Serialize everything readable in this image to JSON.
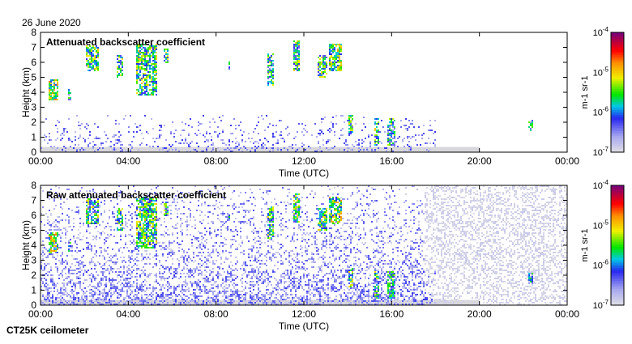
{
  "date_label": "26 June 2020",
  "instrument_label": "CT25K ceilometer",
  "chart_data": [
    {
      "type": "heatmap",
      "title": "Attenuated backscatter coefficient",
      "xlabel": "Time (UTC)",
      "ylabel": "Height (km)",
      "xlim": [
        0,
        24
      ],
      "ylim": [
        0,
        8
      ],
      "xticks": [
        "00:00",
        "04:00",
        "08:00",
        "12:00",
        "16:00",
        "20:00",
        "00:00"
      ],
      "yticks": [
        "0",
        "1",
        "2",
        "3",
        "4",
        "5",
        "6",
        "7",
        "8"
      ],
      "colorbar": {
        "label": "m-1 sr-1",
        "label_base": "m",
        "label_sup1": "-1",
        "label_mid": " sr",
        "label_sup2": "-1",
        "scale": "log",
        "range": [
          1e-07,
          0.0001
        ],
        "ticks": [
          "10",
          "10",
          "10",
          "10"
        ],
        "tick_exponents": [
          "-7",
          "-6",
          "-5",
          "-4"
        ]
      },
      "features": [
        {
          "t": [
            0.3,
            0.8
          ],
          "h": [
            3.5,
            4.9
          ],
          "log_peak": -4.7
        },
        {
          "t": [
            1.2,
            1.4
          ],
          "h": [
            3.5,
            4.3
          ],
          "log_peak": -5.2
        },
        {
          "t": [
            2.0,
            2.6
          ],
          "h": [
            5.5,
            7.2
          ],
          "log_peak": -5.0
        },
        {
          "t": [
            3.4,
            3.7
          ],
          "h": [
            5.0,
            6.5
          ],
          "log_peak": -5.0
        },
        {
          "t": [
            4.3,
            5.3
          ],
          "h": [
            3.8,
            7.3
          ],
          "log_peak": -4.9
        },
        {
          "t": [
            5.6,
            5.8
          ],
          "h": [
            6.0,
            7.0
          ],
          "log_peak": -5.1
        },
        {
          "t": [
            8.5,
            8.6
          ],
          "h": [
            5.3,
            6.1
          ],
          "log_peak": -5.3
        },
        {
          "t": [
            10.3,
            10.6
          ],
          "h": [
            4.5,
            6.7
          ],
          "log_peak": -5.1
        },
        {
          "t": [
            11.5,
            11.8
          ],
          "h": [
            5.5,
            7.5
          ],
          "log_peak": -5.0
        },
        {
          "t": [
            12.6,
            13.0
          ],
          "h": [
            5.0,
            6.5
          ],
          "log_peak": -5.0
        },
        {
          "t": [
            13.1,
            13.7
          ],
          "h": [
            5.5,
            7.3
          ],
          "log_peak": -4.8
        },
        {
          "t": [
            14.0,
            14.2
          ],
          "h": [
            1.2,
            2.5
          ],
          "log_peak": -5.0
        },
        {
          "t": [
            15.2,
            15.4
          ],
          "h": [
            0.5,
            2.3
          ],
          "log_peak": -5.0
        },
        {
          "t": [
            15.8,
            16.1
          ],
          "h": [
            0.5,
            2.3
          ],
          "log_peak": -5.2
        },
        {
          "t": [
            22.2,
            22.4
          ],
          "h": [
            1.5,
            2.2
          ],
          "log_peak": -5.3
        }
      ],
      "boundary_layer": {
        "t": [
          0,
          18
        ],
        "h": [
          0,
          2.5
        ],
        "log_level": -6.5
      }
    },
    {
      "type": "heatmap",
      "title": "Raw attenuated backscatter coefficient",
      "xlabel": "Time (UTC)",
      "ylabel": "Height (km)",
      "xlim": [
        0,
        24
      ],
      "ylim": [
        0,
        8
      ],
      "xticks": [
        "00:00",
        "04:00",
        "08:00",
        "12:00",
        "16:00",
        "20:00",
        "00:00"
      ],
      "yticks": [
        "0",
        "1",
        "2",
        "3",
        "4",
        "5",
        "6",
        "7",
        "8"
      ],
      "colorbar": {
        "label": "m-1 sr-1",
        "label_base": "m",
        "label_sup1": "-1",
        "label_mid": " sr",
        "label_sup2": "-1",
        "scale": "log",
        "range": [
          1e-07,
          0.0001
        ],
        "ticks": [
          "10",
          "10",
          "10",
          "10"
        ],
        "tick_exponents": [
          "-7",
          "-6",
          "-5",
          "-4"
        ]
      },
      "noise_until_hours": 17.5
    }
  ]
}
